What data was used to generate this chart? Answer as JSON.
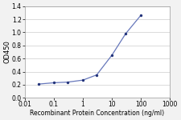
{
  "x": [
    0.03,
    0.1,
    0.3,
    1,
    3,
    10,
    30,
    100
  ],
  "y": [
    0.21,
    0.23,
    0.24,
    0.27,
    0.35,
    0.65,
    0.98,
    1.26
  ],
  "line_color": "#6677bb",
  "marker_color": "#22337a",
  "xlabel": "Recombinant Protein Concentration (ng/ml)",
  "ylabel": "OD450",
  "xlim": [
    0.01,
    1000
  ],
  "ylim": [
    0.0,
    1.4
  ],
  "yticks": [
    0.0,
    0.2,
    0.4,
    0.6,
    0.8,
    1.0,
    1.2,
    1.4
  ],
  "xtick_labels": [
    "0.01",
    "0.1",
    "1",
    "10",
    "100",
    "1000"
  ],
  "xtick_vals": [
    0.01,
    0.1,
    1,
    10,
    100,
    1000
  ],
  "background_color": "#f2f2f2",
  "plot_bg_color": "#ffffff",
  "xlabel_fontsize": 5.5,
  "ylabel_fontsize": 6.0,
  "tick_fontsize": 5.5,
  "grid_color": "#cccccc",
  "spine_color": "#999999",
  "linewidth": 0.9,
  "marker_size": 6
}
